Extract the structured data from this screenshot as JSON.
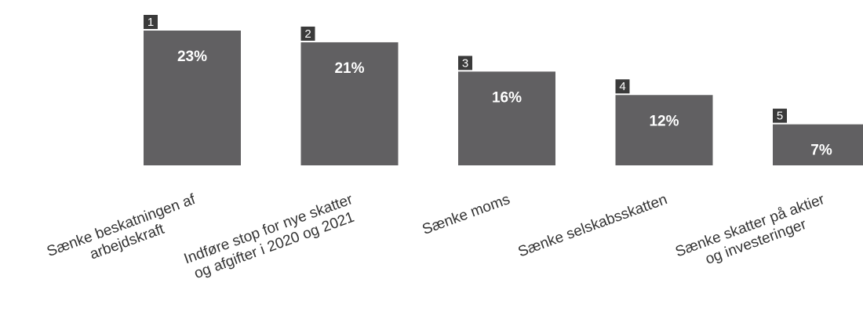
{
  "chart_data": {
    "type": "bar",
    "categories": [
      [
        "Sænke beskatningen af",
        "arbejdskraft"
      ],
      [
        "Indføre stop for nye skatter",
        "og afgifter i 2020 og 2021"
      ],
      [
        "Sænke moms"
      ],
      [
        "Sænke selskabsskatten"
      ],
      [
        "Sænke skatter på aktier",
        "og investeringer"
      ]
    ],
    "values": [
      23,
      21,
      16,
      12,
      7
    ],
    "value_labels": [
      "23%",
      "21%",
      "16%",
      "12%",
      "7%"
    ],
    "ranks": [
      1,
      2,
      3,
      4,
      5
    ],
    "color": "#616062"
  }
}
